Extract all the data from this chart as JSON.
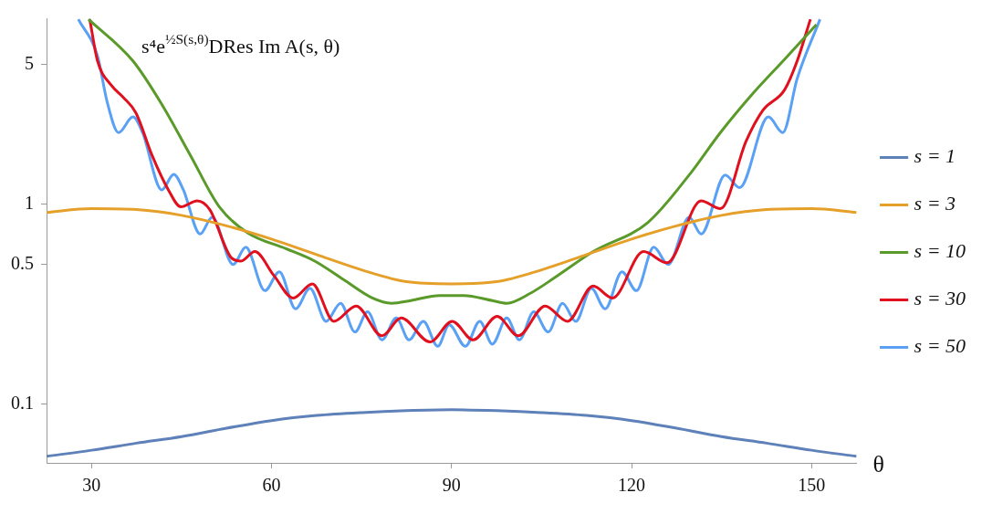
{
  "chart_data": {
    "type": "line",
    "ylabel": "s⁴e$^{½S(s,θ)}$DRes Im A(s, θ)",
    "xlabel": "θ",
    "xlim": [
      22.5,
      157.5
    ],
    "xticks": [
      30,
      60,
      90,
      120,
      150
    ],
    "ylim": [
      0.051,
      8.5
    ],
    "yticks": [
      0.1,
      0.5,
      1,
      5
    ],
    "log": "y",
    "grid": false,
    "legend": "right",
    "marker": "none",
    "line_style": "solid",
    "series": [
      {
        "name": "s = 1",
        "color": "#5d81b8",
        "x": [
          22.5,
          30,
          37.5,
          45,
          52.5,
          60,
          67.5,
          75,
          82.5,
          90,
          97.5,
          105,
          112.5,
          120,
          127.5,
          135,
          142.5,
          150,
          157.5
        ],
        "values": [
          0.055,
          0.059,
          0.064,
          0.069,
          0.076,
          0.083,
          0.088,
          0.091,
          0.093,
          0.094,
          0.093,
          0.091,
          0.088,
          0.083,
          0.076,
          0.069,
          0.064,
          0.059,
          0.055
        ]
      },
      {
        "name": "s = 3",
        "color": "#e5a02a",
        "x": [
          22.5,
          30,
          37.5,
          45,
          52.5,
          60,
          67.5,
          75,
          82.5,
          90,
          97.5,
          105,
          112.5,
          120,
          127.5,
          135,
          142.5,
          150,
          157.5
        ],
        "values": [
          0.91,
          0.95,
          0.94,
          0.88,
          0.78,
          0.67,
          0.56,
          0.47,
          0.41,
          0.4,
          0.41,
          0.47,
          0.56,
          0.67,
          0.78,
          0.88,
          0.94,
          0.95,
          0.91
        ]
      },
      {
        "name": "s = 10",
        "color": "#5a9a2a",
        "x": [
          29.5,
          36.9,
          41.7,
          46.5,
          51.3,
          56,
          62.4,
          67.2,
          72,
          76.8,
          80,
          83.2,
          88,
          90,
          92,
          96.8,
          99.2,
          103.2,
          107.2,
          113.6,
          122.7,
          129.6,
          134.8,
          140.3,
          145.5,
          150.8
        ],
        "values": [
          8.4,
          5.2,
          3.16,
          1.75,
          0.97,
          0.72,
          0.6,
          0.52,
          0.42,
          0.34,
          0.32,
          0.33,
          0.35,
          0.35,
          0.35,
          0.33,
          0.32,
          0.36,
          0.43,
          0.58,
          0.81,
          1.4,
          2.28,
          3.6,
          5.3,
          7.9
        ]
      },
      {
        "name": "s = 30",
        "color": "#e0101e",
        "x": [
          29.7,
          31,
          33.2,
          35.3,
          37.4,
          40.1,
          42.8,
          44.9,
          47.6,
          49.7,
          53.3,
          54.9,
          57.2,
          60.4,
          63.6,
          66.8,
          70.4,
          74.1,
          78.4,
          81.6,
          86.4,
          90.1,
          93.6,
          97.6,
          101.1,
          105.6,
          109.3,
          113.6,
          116.8,
          122,
          125.9,
          131.6,
          134.8,
          139.1,
          141.9,
          145.5,
          147.6,
          149.8
        ],
        "values": [
          8.4,
          5.2,
          3.96,
          3.42,
          2.86,
          1.75,
          1.18,
          0.97,
          1.04,
          0.94,
          0.54,
          0.52,
          0.58,
          0.44,
          0.34,
          0.4,
          0.26,
          0.31,
          0.22,
          0.27,
          0.205,
          0.26,
          0.21,
          0.275,
          0.22,
          0.31,
          0.26,
          0.39,
          0.34,
          0.58,
          0.51,
          1.04,
          0.95,
          2.07,
          2.95,
          3.73,
          5.2,
          8.4
        ]
      },
      {
        "name": "s = 50",
        "color": "#5aa0f5",
        "x": [
          27.8,
          31,
          32.6,
          34.5,
          36.9,
          38.5,
          41.7,
          43.7,
          45.3,
          48.1,
          50.1,
          53.6,
          55.7,
          58.9,
          61.3,
          64,
          66.4,
          69.1,
          71.5,
          73.9,
          76,
          78.4,
          80.8,
          82.9,
          85.3,
          87.7,
          89.6,
          92.3,
          94.7,
          96.8,
          99.2,
          101.3,
          103.7,
          106.1,
          108.5,
          110.7,
          113.3,
          115.6,
          118.4,
          120.8,
          123.7,
          126.1,
          129.6,
          131.6,
          135.6,
          138,
          142.8,
          145.2,
          147.6,
          151.4
        ],
        "values": [
          8.4,
          5.5,
          3.25,
          2.28,
          2.73,
          2.28,
          1.18,
          1.41,
          1.18,
          0.71,
          0.86,
          0.5,
          0.61,
          0.37,
          0.46,
          0.3,
          0.38,
          0.26,
          0.32,
          0.23,
          0.29,
          0.21,
          0.27,
          0.21,
          0.26,
          0.195,
          0.25,
          0.195,
          0.26,
          0.2,
          0.27,
          0.21,
          0.29,
          0.23,
          0.32,
          0.26,
          0.38,
          0.3,
          0.46,
          0.37,
          0.61,
          0.5,
          0.86,
          0.71,
          1.4,
          1.21,
          2.73,
          2.28,
          4.25,
          8.4
        ]
      }
    ]
  }
}
